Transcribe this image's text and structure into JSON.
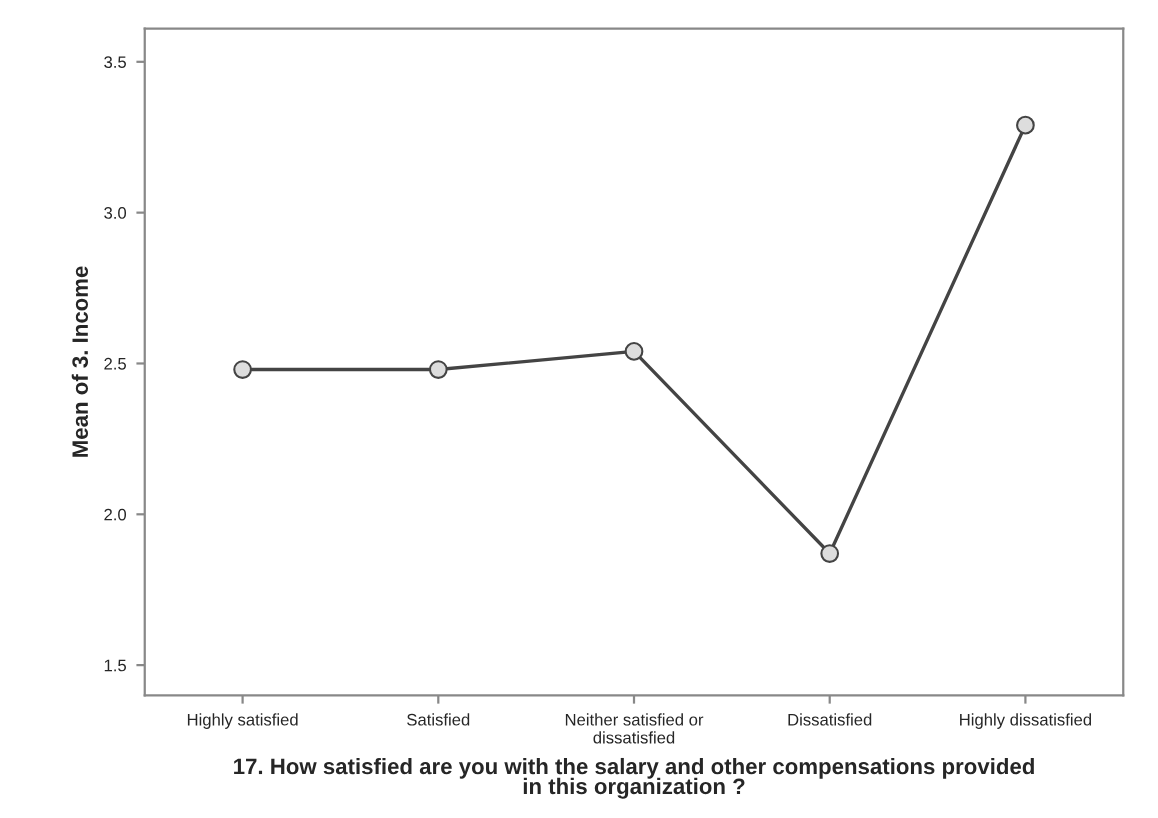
{
  "chart_data": {
    "type": "line",
    "xlabel": "17. How satisfied are you with the salary and other compensations provided\nin this organization ?",
    "ylabel": "Mean of 3. Income",
    "categories": [
      "Highly satisfied",
      "Satisfied",
      "Neither satisfied or\ndissatisfied",
      "Dissatisfied",
      "Highly dissatisfied"
    ],
    "series": [
      {
        "color": "#444444",
        "values": [
          2.48,
          2.48,
          2.54,
          1.87,
          3.29
        ]
      }
    ],
    "ylim": [
      1.4,
      3.61
    ],
    "yticks": [
      1.5,
      {
        "value": 2,
        "label": "2.0"
      },
      2.5,
      {
        "value": 3,
        "label": "3.0"
      },
      3.5
    ],
    "marker": "circle",
    "line_style": "solid",
    "grid": false,
    "legend": false
  }
}
